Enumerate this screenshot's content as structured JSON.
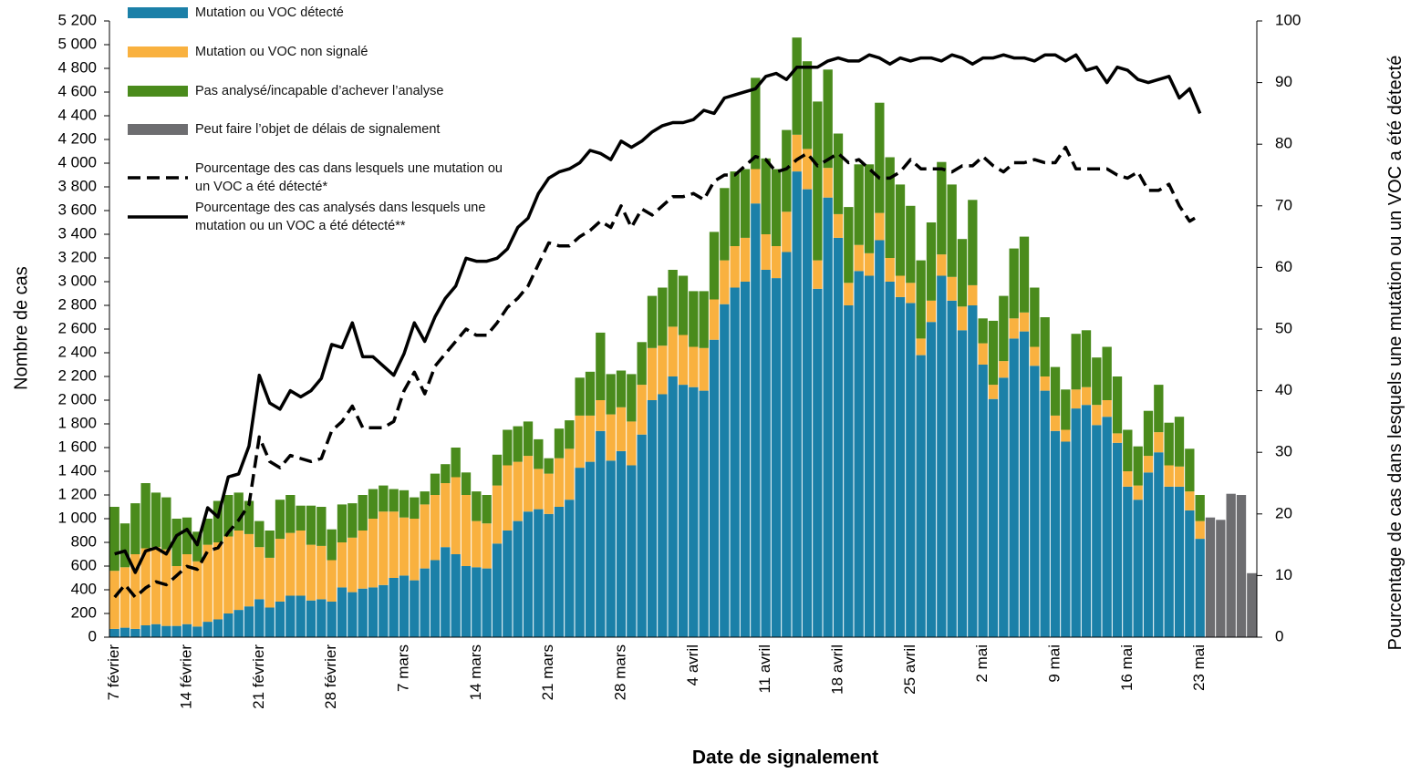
{
  "chart_data": {
    "type": "bar",
    "stacked": true,
    "x_title": "Date de signalement",
    "y_title": "Nombre de cas",
    "y2_title": "Pourcentage de cas dans lesquels une mutation ou un VOC a été détecté",
    "categories": [
      "7 février",
      null,
      null,
      null,
      null,
      null,
      null,
      "14 février",
      null,
      null,
      null,
      null,
      null,
      null,
      "21 février",
      null,
      null,
      null,
      null,
      null,
      null,
      "28 février",
      null,
      null,
      null,
      null,
      null,
      null,
      "7 mars",
      null,
      null,
      null,
      null,
      null,
      null,
      "14 mars",
      null,
      null,
      null,
      null,
      null,
      null,
      "21 mars",
      null,
      null,
      null,
      null,
      null,
      null,
      "28 mars",
      null,
      null,
      null,
      null,
      null,
      null,
      "4 avril",
      null,
      null,
      null,
      null,
      null,
      null,
      "11 avril",
      null,
      null,
      null,
      null,
      null,
      null,
      "18 avril",
      null,
      null,
      null,
      null,
      null,
      null,
      "25 avril",
      null,
      null,
      null,
      null,
      null,
      null,
      "2 mai",
      null,
      null,
      null,
      null,
      null,
      null,
      "9 mai",
      null,
      null,
      null,
      null,
      null,
      null,
      "16 mai",
      null,
      null,
      null,
      null,
      null,
      null,
      "23 mai",
      null,
      null,
      null,
      null,
      null
    ],
    "ylim": [
      0,
      5200
    ],
    "yticks": [
      0,
      200,
      400,
      600,
      800,
      {
        "value": 1000,
        "label": "1 000"
      },
      {
        "value": 1200,
        "label": "1 200"
      },
      {
        "value": 1400,
        "label": "1 400"
      },
      {
        "value": 1600,
        "label": "1 600"
      },
      {
        "value": 1800,
        "label": "1 800"
      },
      {
        "value": 2000,
        "label": "2 000"
      },
      {
        "value": 2200,
        "label": "2 200"
      },
      {
        "value": 2400,
        "label": "2 400"
      },
      {
        "value": 2600,
        "label": "2 600"
      },
      {
        "value": 2800,
        "label": "2 800"
      },
      {
        "value": 3000,
        "label": "3 000"
      },
      {
        "value": 3200,
        "label": "3 200"
      },
      {
        "value": 3400,
        "label": "3 400"
      },
      {
        "value": 3600,
        "label": "3 600"
      },
      {
        "value": 3800,
        "label": "3 800"
      },
      {
        "value": 4000,
        "label": "4 000"
      },
      {
        "value": 4200,
        "label": "4 200"
      },
      {
        "value": 4400,
        "label": "4 400"
      },
      {
        "value": 4600,
        "label": "4 600"
      },
      {
        "value": 4800,
        "label": "4 800"
      },
      {
        "value": 5000,
        "label": "5 000"
      },
      {
        "value": 5200,
        "label": "5 200"
      }
    ],
    "y2lim": [
      0,
      100
    ],
    "y2ticks": [
      0,
      10,
      20,
      30,
      40,
      50,
      60,
      70,
      80,
      90,
      100
    ],
    "series": [
      {
        "name": "Mutation ou VOC détecté",
        "color": "#1b80a8",
        "values": [
          70,
          80,
          70,
          100,
          110,
          95,
          95,
          110,
          90,
          130,
          150,
          200,
          230,
          260,
          320,
          250,
          300,
          350,
          350,
          310,
          320,
          300,
          420,
          380,
          410,
          420,
          440,
          500,
          520,
          480,
          580,
          650,
          760,
          700,
          600,
          590,
          580,
          790,
          900,
          980,
          1060,
          1080,
          1040,
          1100,
          1160,
          1430,
          1480,
          1740,
          1490,
          1570,
          1450,
          1710,
          2000,
          2050,
          2200,
          2130,
          2110,
          2080,
          2510,
          2810,
          2950,
          3000,
          3660,
          3100,
          3030,
          3250,
          3930,
          3780,
          2940,
          3710,
          3370,
          2800,
          3090,
          3050,
          3350,
          3000,
          2870,
          2820,
          2380,
          2660,
          3050,
          2840,
          2590,
          2800,
          2300,
          2010,
          2190,
          2520,
          2580,
          2290,
          2080,
          1740,
          1650,
          1930,
          1960,
          1790,
          1860,
          1640,
          1270,
          1160,
          1390,
          1560,
          1270,
          1270,
          1070,
          830,
          null,
          null,
          null,
          null,
          null
        ]
      },
      {
        "name": "Mutation ou VOC non signalé",
        "color": "#f9b13f",
        "values": [
          490,
          510,
          630,
          650,
          650,
          645,
          505,
          590,
          550,
          650,
          650,
          650,
          670,
          610,
          440,
          420,
          530,
          530,
          550,
          470,
          450,
          350,
          380,
          460,
          490,
          580,
          620,
          560,
          490,
          520,
          540,
          550,
          540,
          650,
          600,
          390,
          380,
          490,
          550,
          500,
          470,
          340,
          340,
          410,
          430,
          440,
          390,
          260,
          390,
          370,
          370,
          420,
          440,
          410,
          420,
          420,
          340,
          360,
          340,
          370,
          350,
          370,
          290,
          300,
          270,
          340,
          310,
          340,
          240,
          250,
          200,
          190,
          220,
          190,
          230,
          200,
          180,
          170,
          140,
          180,
          180,
          200,
          200,
          170,
          180,
          120,
          140,
          170,
          160,
          160,
          120,
          130,
          100,
          160,
          150,
          170,
          140,
          80,
          130,
          120,
          140,
          170,
          180,
          170,
          160,
          150,
          null,
          null,
          null,
          null,
          null
        ]
      },
      {
        "name": "Pas analysé/incapable d’achever l’analyse",
        "color": "#4a8b1c",
        "values": [
          540,
          370,
          430,
          550,
          460,
          440,
          400,
          310,
          250,
          220,
          350,
          350,
          320,
          280,
          220,
          230,
          330,
          320,
          210,
          330,
          330,
          260,
          320,
          290,
          300,
          250,
          220,
          190,
          230,
          180,
          110,
          180,
          160,
          250,
          190,
          250,
          240,
          260,
          300,
          300,
          290,
          250,
          130,
          250,
          240,
          320,
          370,
          570,
          340,
          310,
          400,
          360,
          440,
          490,
          480,
          500,
          470,
          480,
          570,
          610,
          630,
          580,
          770,
          640,
          650,
          690,
          820,
          740,
          1340,
          830,
          680,
          640,
          680,
          750,
          930,
          850,
          770,
          650,
          660,
          660,
          780,
          780,
          570,
          720,
          210,
          540,
          550,
          590,
          640,
          500,
          500,
          410,
          340,
          470,
          480,
          400,
          450,
          480,
          350,
          330,
          380,
          400,
          360,
          420,
          360,
          220,
          null,
          null,
          null,
          null,
          null
        ]
      },
      {
        "name": "Peut faire l’objet de délais de signalement",
        "color": "#6d6d70",
        "values": [
          null,
          null,
          null,
          null,
          null,
          null,
          null,
          null,
          null,
          null,
          null,
          null,
          null,
          null,
          null,
          null,
          null,
          null,
          null,
          null,
          null,
          null,
          null,
          null,
          null,
          null,
          null,
          null,
          null,
          null,
          null,
          null,
          null,
          null,
          null,
          null,
          null,
          null,
          null,
          null,
          null,
          null,
          null,
          null,
          null,
          null,
          null,
          null,
          null,
          null,
          null,
          null,
          null,
          null,
          null,
          null,
          null,
          null,
          null,
          null,
          null,
          null,
          null,
          null,
          null,
          null,
          null,
          null,
          null,
          null,
          null,
          null,
          null,
          null,
          null,
          null,
          null,
          null,
          null,
          null,
          null,
          null,
          null,
          null,
          null,
          null,
          null,
          null,
          null,
          null,
          null,
          null,
          null,
          null,
          null,
          null,
          null,
          null,
          null,
          null,
          null,
          null,
          null,
          null,
          null,
          null,
          1010,
          990,
          1210,
          1200,
          540
        ]
      },
      {
        "name": "Pourcentage des cas dans lesquels une mutation ou un VOC a été détecté*",
        "color": "#000000",
        "type": "line",
        "line_style": "dashed",
        "axis": "y2",
        "values": [
          6.5,
          8.5,
          6.5,
          8,
          9,
          8.5,
          10,
          11.5,
          11,
          14,
          14.5,
          17,
          19,
          21.5,
          32.5,
          28.5,
          27.5,
          29.5,
          29,
          28.5,
          29,
          33.5,
          35,
          37.5,
          34,
          34,
          34,
          35,
          40,
          43,
          39.5,
          44,
          46,
          48,
          50,
          49,
          49,
          51,
          53.5,
          55,
          57,
          60.5,
          64,
          63.5,
          63.5,
          65,
          66,
          67.5,
          66.5,
          70,
          66.5,
          69.5,
          68.5,
          70,
          71.5,
          71.5,
          72,
          71,
          74,
          75,
          75,
          76.5,
          78,
          77.5,
          75.5,
          76,
          77.5,
          78.5,
          76.5,
          77.5,
          78.5,
          77,
          77.5,
          76,
          74.5,
          74.5,
          75.5,
          77.5,
          76,
          76,
          76,
          75.5,
          76.5,
          76.5,
          78,
          76.5,
          75.5,
          77,
          77,
          77.5,
          77,
          77,
          79.5,
          76,
          76,
          76,
          76,
          75,
          74.5,
          75.5,
          72.5,
          72.5,
          73.5,
          70,
          67.5,
          68.5,
          null,
          null,
          null,
          null,
          null
        ]
      },
      {
        "name": "Pourcentage des cas analysés dans lesquels une mutation ou un VOC a été détecté**",
        "color": "#000000",
        "type": "line",
        "line_style": "solid",
        "axis": "y2",
        "values": [
          13.5,
          14,
          10.5,
          14,
          14.5,
          13.5,
          16.5,
          17.5,
          15,
          21,
          19.5,
          26,
          26.5,
          31,
          42.5,
          38,
          37,
          40,
          39,
          40,
          42,
          47.5,
          47,
          51,
          45.5,
          45.5,
          44,
          42.5,
          46,
          51,
          48,
          52,
          55,
          57,
          61.5,
          61,
          61,
          61.5,
          63,
          66.5,
          68,
          72,
          74.5,
          75.5,
          76,
          77,
          79,
          78.5,
          77.5,
          80.5,
          79.5,
          80.5,
          82,
          83,
          83.5,
          83.5,
          84,
          85.5,
          85,
          87.5,
          88,
          88.5,
          89,
          91,
          91.5,
          90.5,
          92.5,
          92.5,
          92.5,
          93.5,
          94,
          93.5,
          93.5,
          94.5,
          94,
          93,
          94,
          93.5,
          94,
          94,
          93.5,
          94.5,
          94,
          93,
          94,
          94,
          94.5,
          94,
          94,
          93.5,
          94.5,
          94.5,
          93.5,
          94.5,
          92,
          92.5,
          90,
          92.5,
          92,
          90.5,
          90,
          90.5,
          91,
          87.5,
          89,
          85,
          null,
          null,
          null,
          null,
          null
        ]
      }
    ]
  }
}
